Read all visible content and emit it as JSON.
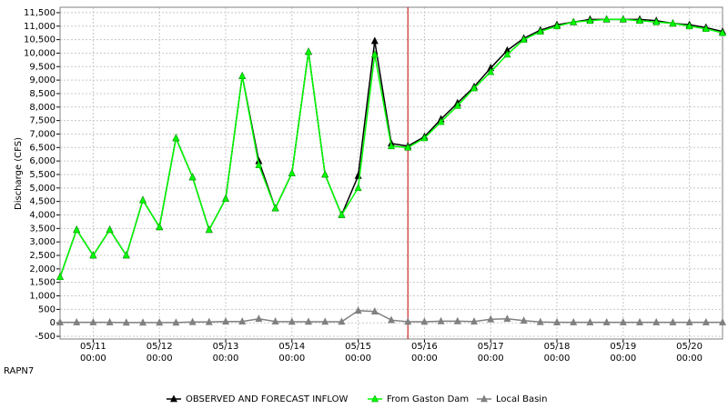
{
  "chart_data": {
    "type": "line",
    "ylabel": "Discharge (CFS)",
    "station": "RAPN7",
    "forecast_start": "05/15 18:00",
    "forecast_line_color": "#c00000",
    "grid": true,
    "xlim": [
      "05/10 12:00",
      "05/20 12:00"
    ],
    "xticks": [
      "05/11 00:00",
      "05/12 00:00",
      "05/13 00:00",
      "05/14 00:00",
      "05/15 00:00",
      "05/16 00:00",
      "05/17 00:00",
      "05/18 00:00",
      "05/19 00:00",
      "05/20 00:00"
    ],
    "ylim": [
      -600,
      11700
    ],
    "yticks": [
      -500,
      0,
      500,
      {
        "value": 1000,
        "label": "1,000"
      },
      {
        "value": 1500,
        "label": "1,500"
      },
      {
        "value": 2000,
        "label": "2,000"
      },
      {
        "value": 2500,
        "label": "2,500"
      },
      {
        "value": 3000,
        "label": "3,000"
      },
      {
        "value": 3500,
        "label": "3,500"
      },
      {
        "value": 4000,
        "label": "4,000"
      },
      {
        "value": 4500,
        "label": "4,500"
      },
      {
        "value": 5000,
        "label": "5,000"
      },
      {
        "value": 5500,
        "label": "5,500"
      },
      {
        "value": 6000,
        "label": "6,000"
      },
      {
        "value": 6500,
        "label": "6,500"
      },
      {
        "value": 7000,
        "label": "7,000"
      },
      {
        "value": 7500,
        "label": "7,500"
      },
      {
        "value": 8000,
        "label": "8,000"
      },
      {
        "value": 8500,
        "label": "8,500"
      },
      {
        "value": 9000,
        "label": "9,000"
      },
      {
        "value": 9500,
        "label": "9,500"
      },
      {
        "value": 10000,
        "label": "10,000"
      },
      {
        "value": 10500,
        "label": "10,500"
      },
      {
        "value": 11000,
        "label": "11,000"
      },
      {
        "value": 11500,
        "label": "11,500"
      }
    ],
    "x": [
      "05/10 12:00",
      "05/10 18:00",
      "05/11 00:00",
      "05/11 06:00",
      "05/11 12:00",
      "05/11 18:00",
      "05/12 00:00",
      "05/12 06:00",
      "05/12 12:00",
      "05/12 18:00",
      "05/13 00:00",
      "05/13 06:00",
      "05/13 12:00",
      "05/13 18:00",
      "05/14 00:00",
      "05/14 06:00",
      "05/14 12:00",
      "05/14 18:00",
      "05/15 00:00",
      "05/15 06:00",
      "05/15 12:00",
      "05/15 18:00",
      "05/16 00:00",
      "05/16 06:00",
      "05/16 12:00",
      "05/16 18:00",
      "05/17 00:00",
      "05/17 06:00",
      "05/17 12:00",
      "05/17 18:00",
      "05/18 00:00",
      "05/18 06:00",
      "05/18 12:00",
      "05/18 18:00",
      "05/19 00:00",
      "05/19 06:00",
      "05/19 12:00",
      "05/19 18:00",
      "05/20 00:00",
      "05/20 06:00",
      "05/20 12:00"
    ],
    "series": [
      {
        "name": "OBSERVED AND FORECAST INFLOW",
        "color": "#000000",
        "values": [
          1700,
          3450,
          2500,
          3450,
          2500,
          4550,
          3550,
          6850,
          5400,
          3450,
          4600,
          9150,
          6000,
          4250,
          5550,
          10050,
          5500,
          4000,
          5450,
          10450,
          6650,
          6550,
          6900,
          7550,
          8150,
          8750,
          9450,
          10100,
          10550,
          10850,
          11050,
          11150,
          11250,
          11250,
          11250,
          11250,
          11200,
          11100,
          11050,
          10950,
          10800
        ]
      },
      {
        "name": "From Gaston Dam",
        "color": "#00ff00",
        "values": [
          1700,
          3450,
          2500,
          3450,
          2500,
          4550,
          3550,
          6850,
          5400,
          3450,
          4600,
          9150,
          5850,
          4250,
          5550,
          10050,
          5500,
          4000,
          5000,
          9950,
          6550,
          6500,
          6850,
          7450,
          8050,
          8700,
          9300,
          9950,
          10500,
          10800,
          11000,
          11150,
          11200,
          11250,
          11250,
          11200,
          11150,
          11100,
          11000,
          10900,
          10750
        ]
      },
      {
        "name": "Local Basin",
        "color": "#808080",
        "values": [
          20,
          20,
          20,
          20,
          10,
          10,
          10,
          10,
          30,
          30,
          50,
          50,
          150,
          50,
          40,
          40,
          40,
          40,
          450,
          420,
          100,
          40,
          40,
          60,
          60,
          50,
          130,
          150,
          80,
          30,
          20,
          20,
          20,
          20,
          20,
          20,
          20,
          20,
          20,
          20,
          20
        ]
      }
    ]
  }
}
